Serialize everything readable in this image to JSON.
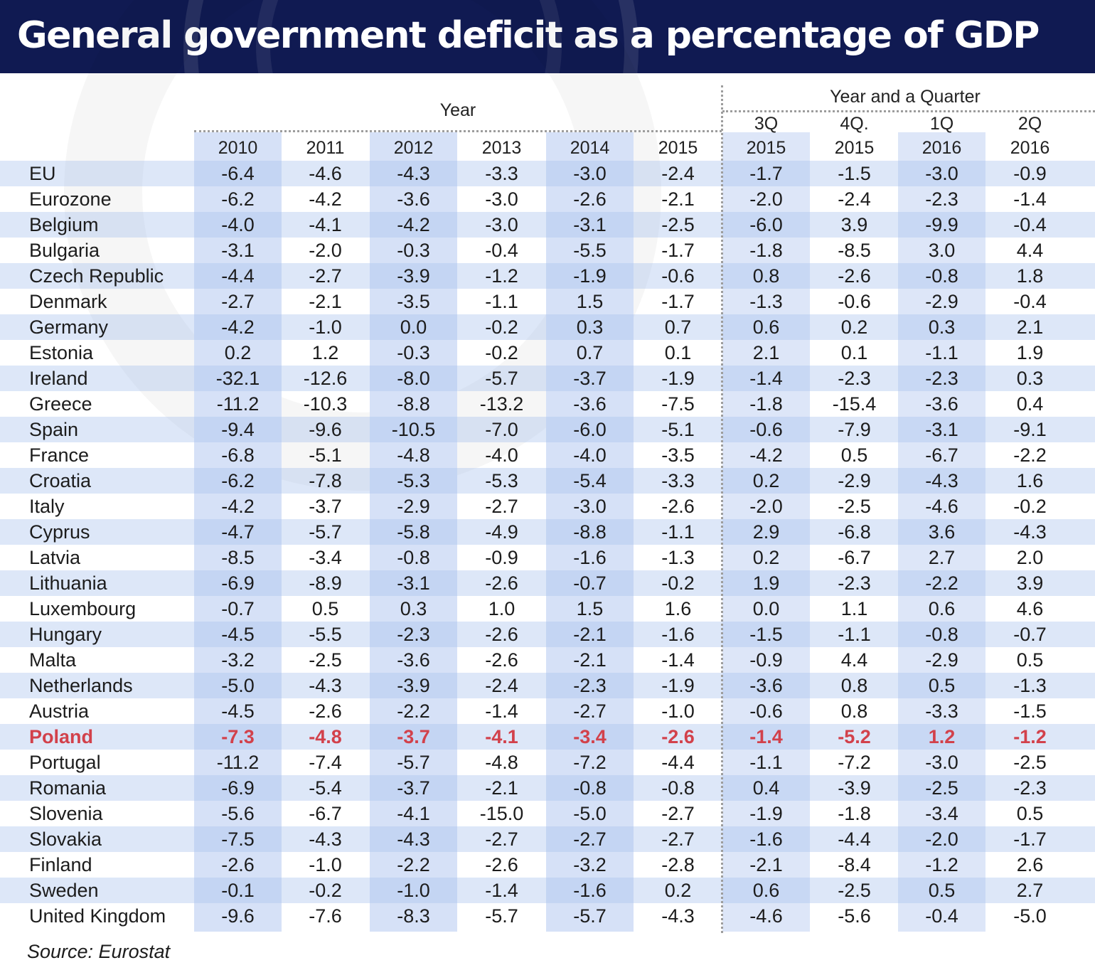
{
  "title": "General government deficit as a percentage of GDP",
  "source": "Source: Eurostat",
  "colors": {
    "title_bg": "#101a52",
    "highlight": "#d2414b",
    "column_shade": "#d6e1f7",
    "row_band": "#aac4ee"
  },
  "chart_data": {
    "type": "table",
    "title": "General government deficit as a percentage of GDP",
    "groups": [
      {
        "label": "Year",
        "columns": [
          "2010",
          "2011",
          "2012",
          "2013",
          "2014",
          "2015"
        ]
      },
      {
        "label": "Year and a Quarter",
        "columns": [
          "3Q 2015",
          "4Q. 2015",
          "1Q 2016",
          "2Q 2016"
        ]
      }
    ],
    "columns": [
      {
        "line1": "",
        "line2": "2010"
      },
      {
        "line1": "",
        "line2": "2011"
      },
      {
        "line1": "",
        "line2": "2012"
      },
      {
        "line1": "",
        "line2": "2013"
      },
      {
        "line1": "",
        "line2": "2014"
      },
      {
        "line1": "",
        "line2": "2015"
      },
      {
        "line1": "3Q",
        "line2": "2015"
      },
      {
        "line1": "4Q.",
        "line2": "2015"
      },
      {
        "line1": "1Q",
        "line2": "2016"
      },
      {
        "line1": "2Q",
        "line2": "2016"
      }
    ],
    "highlight_row": "Poland",
    "rows": [
      {
        "name": "EU",
        "values": [
          "-6.4",
          "-4.6",
          "-4.3",
          "-3.3",
          "-3.0",
          "-2.4",
          "-1.7",
          "-1.5",
          "-3.0",
          "-0.9"
        ]
      },
      {
        "name": "Eurozone",
        "values": [
          "-6.2",
          "-4.2",
          "-3.6",
          "-3.0",
          "-2.6",
          "-2.1",
          "-2.0",
          "-2.4",
          "-2.3",
          "-1.4"
        ]
      },
      {
        "name": "Belgium",
        "values": [
          "-4.0",
          "-4.1",
          "-4.2",
          "-3.0",
          "-3.1",
          "-2.5",
          "-6.0",
          "3.9",
          "-9.9",
          "-0.4"
        ]
      },
      {
        "name": "Bulgaria",
        "values": [
          "-3.1",
          "-2.0",
          "-0.3",
          "-0.4",
          "-5.5",
          "-1.7",
          "-1.8",
          "-8.5",
          "3.0",
          "4.4"
        ]
      },
      {
        "name": "Czech Republic",
        "values": [
          "-4.4",
          "-2.7",
          "-3.9",
          "-1.2",
          "-1.9",
          "-0.6",
          "0.8",
          "-2.6",
          "-0.8",
          "1.8"
        ]
      },
      {
        "name": "Denmark",
        "values": [
          "-2.7",
          "-2.1",
          "-3.5",
          "-1.1",
          "1.5",
          "-1.7",
          "-1.3",
          "-0.6",
          "-2.9",
          "-0.4"
        ]
      },
      {
        "name": "Germany",
        "values": [
          "-4.2",
          "-1.0",
          "0.0",
          "-0.2",
          "0.3",
          "0.7",
          "0.6",
          "0.2",
          "0.3",
          "2.1"
        ]
      },
      {
        "name": "Estonia",
        "values": [
          "0.2",
          "1.2",
          "-0.3",
          "-0.2",
          "0.7",
          "0.1",
          "2.1",
          "0.1",
          "-1.1",
          "1.9"
        ]
      },
      {
        "name": "Ireland",
        "values": [
          "-32.1",
          "-12.6",
          "-8.0",
          "-5.7",
          "-3.7",
          "-1.9",
          "-1.4",
          "-2.3",
          "-2.3",
          "0.3"
        ]
      },
      {
        "name": "Greece",
        "values": [
          "-11.2",
          "-10.3",
          "-8.8",
          "-13.2",
          "-3.6",
          "-7.5",
          "-1.8",
          "-15.4",
          "-3.6",
          "0.4"
        ]
      },
      {
        "name": "Spain",
        "values": [
          "-9.4",
          "-9.6",
          "-10.5",
          "-7.0",
          "-6.0",
          "-5.1",
          "-0.6",
          "-7.9",
          "-3.1",
          "-9.1"
        ]
      },
      {
        "name": "France",
        "values": [
          "-6.8",
          "-5.1",
          "-4.8",
          "-4.0",
          "-4.0",
          "-3.5",
          "-4.2",
          "0.5",
          "-6.7",
          "-2.2"
        ]
      },
      {
        "name": "Croatia",
        "values": [
          "-6.2",
          "-7.8",
          "-5.3",
          "-5.3",
          "-5.4",
          "-3.3",
          "0.2",
          "-2.9",
          "-4.3",
          "1.6"
        ]
      },
      {
        "name": "Italy",
        "values": [
          "-4.2",
          "-3.7",
          "-2.9",
          "-2.7",
          "-3.0",
          "-2.6",
          "-2.0",
          "-2.5",
          "-4.6",
          "-0.2"
        ]
      },
      {
        "name": "Cyprus",
        "values": [
          "-4.7",
          "-5.7",
          "-5.8",
          "-4.9",
          "-8.8",
          "-1.1",
          "2.9",
          "-6.8",
          "3.6",
          "-4.3"
        ]
      },
      {
        "name": "Latvia",
        "values": [
          "-8.5",
          "-3.4",
          "-0.8",
          "-0.9",
          "-1.6",
          "-1.3",
          "0.2",
          "-6.7",
          "2.7",
          "2.0"
        ]
      },
      {
        "name": "Lithuania",
        "values": [
          "-6.9",
          "-8.9",
          "-3.1",
          "-2.6",
          "-0.7",
          "-0.2",
          "1.9",
          "-2.3",
          "-2.2",
          "3.9"
        ]
      },
      {
        "name": "Luxembourg",
        "values": [
          "-0.7",
          "0.5",
          "0.3",
          "1.0",
          "1.5",
          "1.6",
          "0.0",
          "1.1",
          "0.6",
          "4.6"
        ]
      },
      {
        "name": "Hungary",
        "values": [
          "-4.5",
          "-5.5",
          "-2.3",
          "-2.6",
          "-2.1",
          "-1.6",
          "-1.5",
          "-1.1",
          "-0.8",
          "-0.7"
        ]
      },
      {
        "name": "Malta",
        "values": [
          "-3.2",
          "-2.5",
          "-3.6",
          "-2.6",
          "-2.1",
          "-1.4",
          "-0.9",
          "4.4",
          "-2.9",
          "0.5"
        ]
      },
      {
        "name": "Netherlands",
        "values": [
          "-5.0",
          "-4.3",
          "-3.9",
          "-2.4",
          "-2.3",
          "-1.9",
          "-3.6",
          "0.8",
          "0.5",
          "-1.3"
        ]
      },
      {
        "name": "Austria",
        "values": [
          "-4.5",
          "-2.6",
          "-2.2",
          "-1.4",
          "-2.7",
          "-1.0",
          "-0.6",
          "0.8",
          "-3.3",
          "-1.5"
        ]
      },
      {
        "name": "Poland",
        "values": [
          "-7.3",
          "-4.8",
          "-3.7",
          "-4.1",
          "-3.4",
          "-2.6",
          "-1.4",
          "-5.2",
          "1.2",
          "-1.2"
        ]
      },
      {
        "name": "Portugal",
        "values": [
          "-11.2",
          "-7.4",
          "-5.7",
          "-4.8",
          "-7.2",
          "-4.4",
          "-1.1",
          "-7.2",
          "-3.0",
          "-2.5"
        ]
      },
      {
        "name": "Romania",
        "values": [
          "-6.9",
          "-5.4",
          "-3.7",
          "-2.1",
          "-0.8",
          "-0.8",
          "0.4",
          "-3.9",
          "-2.5",
          "-2.3"
        ]
      },
      {
        "name": "Slovenia",
        "values": [
          "-5.6",
          "-6.7",
          "-4.1",
          "-15.0",
          "-5.0",
          "-2.7",
          "-1.9",
          "-1.8",
          "-3.4",
          "0.5"
        ]
      },
      {
        "name": "Slovakia",
        "values": [
          "-7.5",
          "-4.3",
          "-4.3",
          "-2.7",
          "-2.7",
          "-2.7",
          "-1.6",
          "-4.4",
          "-2.0",
          "-1.7"
        ]
      },
      {
        "name": "Finland",
        "values": [
          "-2.6",
          "-1.0",
          "-2.2",
          "-2.6",
          "-3.2",
          "-2.8",
          "-2.1",
          "-8.4",
          "-1.2",
          "2.6"
        ]
      },
      {
        "name": "Sweden",
        "values": [
          "-0.1",
          "-0.2",
          "-1.0",
          "-1.4",
          "-1.6",
          "0.2",
          "0.6",
          "-2.5",
          "0.5",
          "2.7"
        ]
      },
      {
        "name": "United Kingdom",
        "values": [
          "-9.6",
          "-7.6",
          "-8.3",
          "-5.7",
          "-5.7",
          "-4.3",
          "-4.6",
          "-5.6",
          "-0.4",
          "-5.0"
        ]
      }
    ]
  }
}
